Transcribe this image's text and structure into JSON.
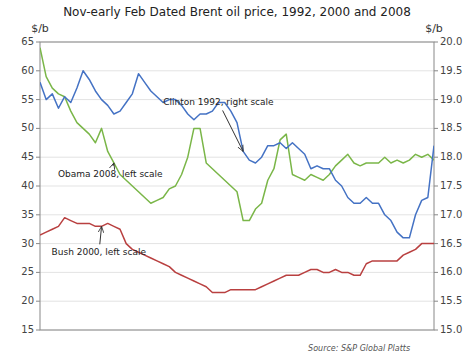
{
  "chart_data": {
    "type": "line",
    "title": "Nov-early Feb Dated Brent oil price, 1992, 2000 and 2008",
    "ylabel": "$/b",
    "y2label": "$/b",
    "source": "Source: S&P Global Platts",
    "x": [
      0,
      1,
      2,
      3,
      4,
      5,
      6,
      7,
      8,
      9,
      10,
      11,
      12,
      13,
      14,
      15,
      16,
      17,
      18,
      19,
      20,
      21,
      22,
      23,
      24,
      25,
      26,
      27,
      28,
      29,
      30,
      31,
      32,
      33,
      34,
      35,
      36,
      37,
      38,
      39,
      40,
      41,
      42,
      43,
      44,
      45,
      46,
      47,
      48,
      49,
      50,
      51,
      52,
      53,
      54,
      55,
      56,
      57,
      58,
      59,
      60,
      61,
      62,
      63,
      64
    ],
    "xlim": [
      0,
      64
    ],
    "ylim": [
      15,
      65
    ],
    "yticks": [
      15,
      20,
      25,
      30,
      35,
      40,
      45,
      50,
      55,
      60,
      65
    ],
    "y2lim": [
      15,
      20
    ],
    "y2ticks": [
      {
        "value": 15,
        "label": "15.0"
      },
      15.5,
      {
        "value": 16,
        "label": "16.0"
      },
      16.5,
      {
        "value": 17,
        "label": "17.0"
      },
      17.5,
      {
        "value": 18,
        "label": "18.0"
      },
      18.5,
      {
        "value": 19,
        "label": "19.0"
      },
      19.5,
      {
        "value": 20,
        "label": "20.0"
      }
    ],
    "grid": true,
    "tick_labels": "y",
    "series": [
      {
        "color": "#7ab648",
        "values": [
          64,
          59,
          57,
          56,
          55.5,
          53,
          51,
          50,
          49,
          47.5,
          50,
          46,
          44,
          42,
          41,
          40,
          39,
          38,
          37,
          37.5,
          38,
          39.5,
          40,
          42,
          45,
          50,
          50,
          44,
          43,
          42,
          41,
          40,
          39,
          34,
          34,
          36,
          37,
          41,
          43,
          48,
          49,
          42,
          41.5,
          41,
          42,
          41.5,
          41,
          42,
          43.5,
          44.5,
          45.5,
          44,
          43.5,
          44,
          44,
          44,
          45,
          44,
          44.5,
          44,
          44.5,
          45.5,
          45,
          45.5,
          44.5
        ]
      },
      {
        "color": "#b94040",
        "values": [
          31.5,
          32,
          32.5,
          33,
          34.5,
          34,
          33.5,
          33.5,
          33.5,
          33,
          33,
          33.5,
          33,
          32.5,
          30,
          29,
          28.5,
          28,
          27.5,
          27,
          26.5,
          26,
          25,
          24.5,
          24,
          23.5,
          23,
          22.5,
          21.5,
          21.5,
          21.5,
          22,
          22,
          22,
          22,
          22,
          22.5,
          23,
          23.5,
          24,
          24.5,
          24.5,
          24.5,
          25,
          25.5,
          25.5,
          25,
          25,
          25.5,
          25,
          25,
          24.5,
          24.5,
          26.5,
          27,
          27,
          27,
          27,
          27,
          28,
          28.5,
          29,
          30,
          30,
          30
        ]
      },
      {
        "color": "#4472c4",
        "axis": "y2",
        "values": [
          19.3,
          19.0,
          19.1,
          18.85,
          19.05,
          18.95,
          19.2,
          19.5,
          19.35,
          19.15,
          19.0,
          18.9,
          18.75,
          18.8,
          18.95,
          19.1,
          19.45,
          19.3,
          19.15,
          19.05,
          18.95,
          19.0,
          19.0,
          18.9,
          18.75,
          18.65,
          18.75,
          18.75,
          18.8,
          18.95,
          18.95,
          18.8,
          18.6,
          18.1,
          17.95,
          17.9,
          18.0,
          18.2,
          18.2,
          18.25,
          18.15,
          18.25,
          18.15,
          18.05,
          17.8,
          17.85,
          17.8,
          17.8,
          17.6,
          17.5,
          17.3,
          17.2,
          17.2,
          17.3,
          17.2,
          17.2,
          17.0,
          16.9,
          16.7,
          16.6,
          16.6,
          17.0,
          17.25,
          17.3,
          18.2
        ]
      }
    ],
    "annotations": [
      {
        "text": "Obama 2008, left scale",
        "x": 12,
        "y": 44
      },
      {
        "text": "Bush 2000, left scale",
        "x": 10,
        "y": 33
      },
      {
        "text": "Clinton 1992, right scale",
        "x": 33,
        "y": 18.1,
        "axis": "y2"
      }
    ]
  }
}
